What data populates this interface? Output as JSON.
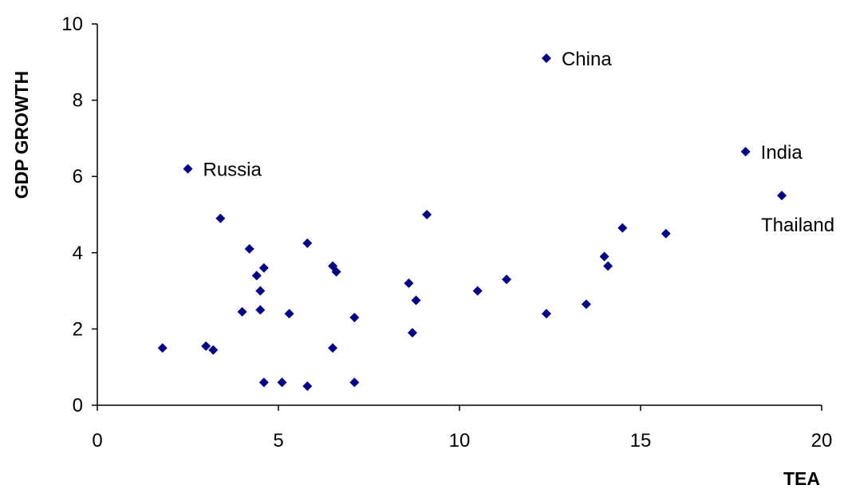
{
  "chart_data": {
    "type": "scatter",
    "title": "",
    "xlabel": "TEA",
    "ylabel": "GDP GROWTH",
    "xlim": [
      0,
      20
    ],
    "ylim": [
      0,
      10
    ],
    "xticks": [
      "0",
      "5",
      "10",
      "15",
      "20"
    ],
    "yticks": [
      "0",
      "2",
      "4",
      "6",
      "8",
      "10"
    ],
    "grid": false,
    "legend": "none",
    "marker": "diamond",
    "marker_color": "#000080",
    "series": [
      {
        "points": [
          {
            "x": 1.8,
            "y": 1.5
          },
          {
            "x": 2.5,
            "y": 6.2,
            "label": "Russia"
          },
          {
            "x": 3.0,
            "y": 1.55
          },
          {
            "x": 3.2,
            "y": 1.45
          },
          {
            "x": 3.4,
            "y": 4.9
          },
          {
            "x": 4.0,
            "y": 2.45
          },
          {
            "x": 4.2,
            "y": 4.1
          },
          {
            "x": 4.4,
            "y": 3.4
          },
          {
            "x": 4.5,
            "y": 3.0
          },
          {
            "x": 4.5,
            "y": 2.5
          },
          {
            "x": 4.6,
            "y": 3.6
          },
          {
            "x": 4.6,
            "y": 0.6
          },
          {
            "x": 5.1,
            "y": 0.6
          },
          {
            "x": 5.3,
            "y": 2.4
          },
          {
            "x": 5.8,
            "y": 4.25
          },
          {
            "x": 5.8,
            "y": 0.5
          },
          {
            "x": 6.5,
            "y": 3.65
          },
          {
            "x": 6.6,
            "y": 3.5
          },
          {
            "x": 6.5,
            "y": 1.5
          },
          {
            "x": 7.1,
            "y": 2.3
          },
          {
            "x": 7.1,
            "y": 0.6
          },
          {
            "x": 8.6,
            "y": 3.2
          },
          {
            "x": 8.7,
            "y": 1.9
          },
          {
            "x": 8.8,
            "y": 2.75
          },
          {
            "x": 9.1,
            "y": 5.0
          },
          {
            "x": 10.5,
            "y": 3.0
          },
          {
            "x": 11.3,
            "y": 3.3
          },
          {
            "x": 12.4,
            "y": 9.1,
            "label": "China"
          },
          {
            "x": 12.4,
            "y": 2.4
          },
          {
            "x": 13.5,
            "y": 2.65
          },
          {
            "x": 14.0,
            "y": 3.9
          },
          {
            "x": 14.1,
            "y": 3.65
          },
          {
            "x": 14.5,
            "y": 4.65
          },
          {
            "x": 15.7,
            "y": 4.5
          },
          {
            "x": 17.9,
            "y": 6.65,
            "label": "India"
          },
          {
            "x": 18.9,
            "y": 5.5,
            "label": "Thailand"
          }
        ]
      }
    ]
  }
}
